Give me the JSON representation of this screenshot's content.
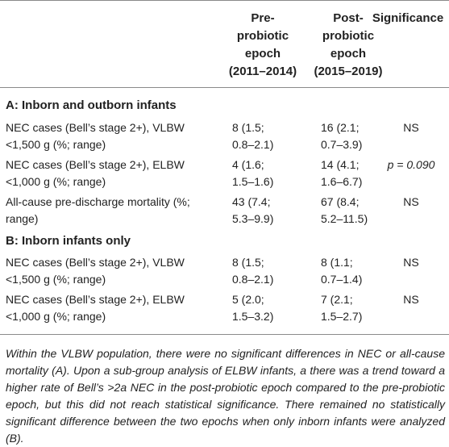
{
  "table": {
    "headers": {
      "pre": "Pre-\nprobiotic\nepoch\n(2011–2014)",
      "post": "Post-\nprobiotic\nepoch\n(2015–2019)",
      "significance": "Significance"
    },
    "section_a": {
      "title": "A: Inborn and outborn infants",
      "rows": [
        {
          "label": "NEC cases (Bell’s stage 2+), VLBW\n<1,500 g (%; range)",
          "pre": "8 (1.5;\n0.8–2.1)",
          "post": "16 (2.1;\n0.7–3.9)",
          "sig": "NS"
        },
        {
          "label": "NEC cases (Bell’s stage 2+), ELBW\n<1,000 g (%; range)",
          "pre": "4 (1.6;\n1.5–1.6)",
          "post": "14 (4.1;\n1.6–6.7)",
          "sig": "p = 0.090"
        },
        {
          "label": "All-cause pre-discharge mortality (%;\nrange)",
          "pre": "43 (7.4;\n5.3–9.9)",
          "post": "67 (8.4;\n5.2–11.5)",
          "sig": "NS"
        }
      ]
    },
    "section_b": {
      "title": "B: Inborn infants only",
      "rows": [
        {
          "label": "NEC cases (Bell’s stage 2+), VLBW\n<1,500 g (%; range)",
          "pre": "8 (1.5;\n0.8–2.1)",
          "post": "8 (1.1;\n0.7–1.4)",
          "sig": "NS"
        },
        {
          "label": "NEC cases (Bell’s stage 2+), ELBW\n<1,000 g (%; range)",
          "pre": "5 (2.0;\n1.5–3.2)",
          "post": "7 (2.1;\n1.5–2.7)",
          "sig": "NS"
        }
      ]
    }
  },
  "footnote": "Within the VLBW population, there were no significant differences in NEC or all-cause mortality (A). Upon a sub-group analysis of ELBW infants, a there was a trend toward a higher rate of Bell’s >2a NEC in the post-probiotic epoch compared to the pre-probiotic epoch, but this did not reach statistical significance. There remained no statistically significant difference between the two epochs when only inborn infants were analyzed (B)."
}
